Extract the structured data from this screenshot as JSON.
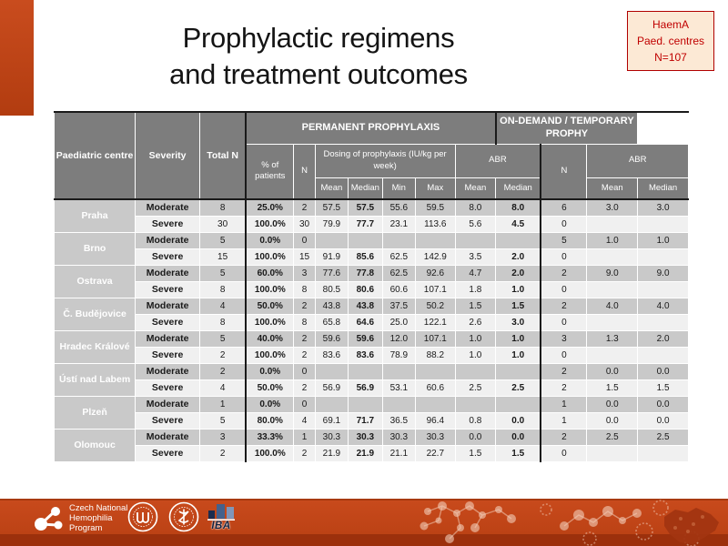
{
  "slide": {
    "title_line1": "Prophylactic regimens",
    "title_line2": "and treatment outcomes",
    "badge": {
      "line1": "HaemA",
      "line2": "Paed. centres",
      "line3": "N=107"
    }
  },
  "table": {
    "columns": {
      "centre": "Paediatric centre",
      "severity": "Severity",
      "total_n": "Total N",
      "permanent_group": "PERMANENT PROPHYLAXIS",
      "on_demand_group": "ON-DEMAND / TEMPORARY PROPHY",
      "pct": "% of patients",
      "n": "N",
      "dosing": "Dosing of prophylaxis (IU/kg per week)",
      "abr": "ABR",
      "mean": "Mean",
      "median": "Median",
      "min": "Min",
      "max": "Max"
    },
    "centres": [
      {
        "name": "Praha",
        "rows": [
          {
            "severity": "Moderate",
            "total_n": "8",
            "pct": "25.0%",
            "n": "2",
            "mean": "57.5",
            "median": "57.5",
            "min": "55.6",
            "max": "59.5",
            "abr_mean": "8.0",
            "abr_median": "8.0",
            "od_n": "6",
            "od_mean": "3.0",
            "od_median": "3.0"
          },
          {
            "severity": "Severe",
            "total_n": "30",
            "pct": "100.0%",
            "n": "30",
            "mean": "79.9",
            "median": "77.7",
            "min": "23.1",
            "max": "113.6",
            "abr_mean": "5.6",
            "abr_median": "4.5",
            "od_n": "0",
            "od_mean": "",
            "od_median": ""
          }
        ]
      },
      {
        "name": "Brno",
        "rows": [
          {
            "severity": "Moderate",
            "total_n": "5",
            "pct": "0.0%",
            "n": "0",
            "mean": "",
            "median": "",
            "min": "",
            "max": "",
            "abr_mean": "",
            "abr_median": "",
            "od_n": "5",
            "od_mean": "1.0",
            "od_median": "1.0"
          },
          {
            "severity": "Severe",
            "total_n": "15",
            "pct": "100.0%",
            "n": "15",
            "mean": "91.9",
            "median": "85.6",
            "min": "62.5",
            "max": "142.9",
            "abr_mean": "3.5",
            "abr_median": "2.0",
            "od_n": "0",
            "od_mean": "",
            "od_median": ""
          }
        ]
      },
      {
        "name": "Ostrava",
        "rows": [
          {
            "severity": "Moderate",
            "total_n": "5",
            "pct": "60.0%",
            "n": "3",
            "mean": "77.6",
            "median": "77.8",
            "min": "62.5",
            "max": "92.6",
            "abr_mean": "4.7",
            "abr_median": "2.0",
            "od_n": "2",
            "od_mean": "9.0",
            "od_median": "9.0"
          },
          {
            "severity": "Severe",
            "total_n": "8",
            "pct": "100.0%",
            "n": "8",
            "mean": "80.5",
            "median": "80.6",
            "min": "60.6",
            "max": "107.1",
            "abr_mean": "1.8",
            "abr_median": "1.0",
            "od_n": "0",
            "od_mean": "",
            "od_median": ""
          }
        ]
      },
      {
        "name": "Č. Budějovice",
        "rows": [
          {
            "severity": "Moderate",
            "total_n": "4",
            "pct": "50.0%",
            "n": "2",
            "mean": "43.8",
            "median": "43.8",
            "min": "37.5",
            "max": "50.2",
            "abr_mean": "1.5",
            "abr_median": "1.5",
            "od_n": "2",
            "od_mean": "4.0",
            "od_median": "4.0"
          },
          {
            "severity": "Severe",
            "total_n": "8",
            "pct": "100.0%",
            "n": "8",
            "mean": "65.8",
            "median": "64.6",
            "min": "25.0",
            "max": "122.1",
            "abr_mean": "2.6",
            "abr_median": "3.0",
            "od_n": "0",
            "od_mean": "",
            "od_median": ""
          }
        ]
      },
      {
        "name": "Hradec Králové",
        "rows": [
          {
            "severity": "Moderate",
            "total_n": "5",
            "pct": "40.0%",
            "n": "2",
            "mean": "59.6",
            "median": "59.6",
            "min": "12.0",
            "max": "107.1",
            "abr_mean": "1.0",
            "abr_median": "1.0",
            "od_n": "3",
            "od_mean": "1.3",
            "od_median": "2.0"
          },
          {
            "severity": "Severe",
            "total_n": "2",
            "pct": "100.0%",
            "n": "2",
            "mean": "83.6",
            "median": "83.6",
            "min": "78.9",
            "max": "88.2",
            "abr_mean": "1.0",
            "abr_median": "1.0",
            "od_n": "0",
            "od_mean": "",
            "od_median": ""
          }
        ]
      },
      {
        "name": "Ústí nad Labem",
        "rows": [
          {
            "severity": "Moderate",
            "total_n": "2",
            "pct": "0.0%",
            "n": "0",
            "mean": "",
            "median": "",
            "min": "",
            "max": "",
            "abr_mean": "",
            "abr_median": "",
            "od_n": "2",
            "od_mean": "0.0",
            "od_median": "0.0"
          },
          {
            "severity": "Severe",
            "total_n": "4",
            "pct": "50.0%",
            "n": "2",
            "mean": "56.9",
            "median": "56.9",
            "min": "53.1",
            "max": "60.6",
            "abr_mean": "2.5",
            "abr_median": "2.5",
            "od_n": "2",
            "od_mean": "1.5",
            "od_median": "1.5"
          }
        ]
      },
      {
        "name": "Plzeň",
        "rows": [
          {
            "severity": "Moderate",
            "total_n": "1",
            "pct": "0.0%",
            "n": "0",
            "mean": "",
            "median": "",
            "min": "",
            "max": "",
            "abr_mean": "",
            "abr_median": "",
            "od_n": "1",
            "od_mean": "0.0",
            "od_median": "0.0"
          },
          {
            "severity": "Severe",
            "total_n": "5",
            "pct": "80.0%",
            "n": "4",
            "mean": "69.1",
            "median": "71.7",
            "min": "36.5",
            "max": "96.4",
            "abr_mean": "0.8",
            "abr_median": "0.0",
            "od_n": "1",
            "od_mean": "0.0",
            "od_median": "0.0"
          }
        ]
      },
      {
        "name": "Olomouc",
        "rows": [
          {
            "severity": "Moderate",
            "total_n": "3",
            "pct": "33.3%",
            "n": "1",
            "mean": "30.3",
            "median": "30.3",
            "min": "30.3",
            "max": "30.3",
            "abr_mean": "0.0",
            "abr_median": "0.0",
            "od_n": "2",
            "od_mean": "2.5",
            "od_median": "2.5"
          },
          {
            "severity": "Severe",
            "total_n": "2",
            "pct": "100.0%",
            "n": "2",
            "mean": "21.9",
            "median": "21.9",
            "min": "21.1",
            "max": "22.7",
            "abr_mean": "1.5",
            "abr_median": "1.5",
            "od_n": "0",
            "od_mean": "",
            "od_median": ""
          }
        ]
      }
    ]
  },
  "footer": {
    "cnhp_text": "Czech National\nHemophilia\nProgram",
    "iba_label": "IBA"
  },
  "colors": {
    "accent_orange": "#C2451B",
    "strip_dark": "#9C300C",
    "header_gray": "#7D7D7D",
    "row_moderate": "#C9C9C9",
    "row_severe": "#F0F0F0",
    "badge_red": "#C00000",
    "badge_bg": "#FCE9D5",
    "iba_navy": "#15233F"
  }
}
